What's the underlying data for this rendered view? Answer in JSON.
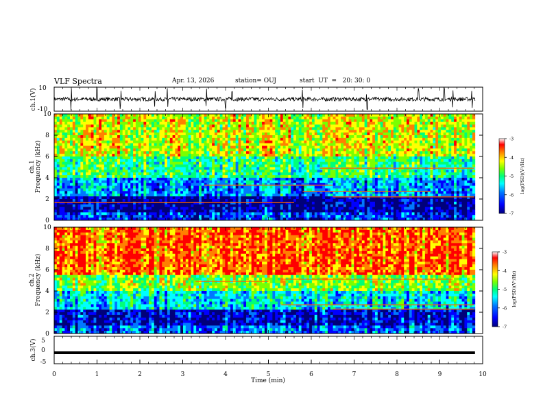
{
  "header": {
    "title": "VLF Spectra",
    "date": "Apr. 13, 2026",
    "station": "station= OUJ",
    "start": "start  UT  =   20: 30: 0"
  },
  "chart_data": [
    {
      "type": "line",
      "panel": "ch1-waveform",
      "ylabel": "ch.1(V)",
      "ylim": [
        -10,
        10
      ],
      "yticks": [
        "10",
        "-10"
      ],
      "xlim": [
        0,
        10
      ],
      "baseline": 0,
      "amplitude_typical": 2,
      "spikes_min": [
        0.4,
        1.0,
        1.55,
        2.35,
        2.65,
        3.55,
        4.0,
        4.15,
        5.8,
        7.3,
        8.5,
        9.1,
        9.3,
        9.75
      ]
    },
    {
      "type": "heatmap",
      "panel": "ch1-spectrogram",
      "ylabel": "ch.1 Frequency (kHz)",
      "ylabel_line1": "ch.1",
      "ylabel_line2": "Frequency  (kHz)",
      "ylim": [
        0,
        10
      ],
      "yticks": [
        "0",
        "2",
        "4",
        "6",
        "8",
        "10"
      ],
      "xlim": [
        0,
        9.82
      ],
      "colorbar": {
        "label": "log(PSD)(V²/Hz)",
        "range": [
          -7,
          -3
        ],
        "ticks": [
          "-3",
          "-4",
          "-5",
          "-6",
          "-7"
        ]
      },
      "lines": [
        {
          "t0": 6.2,
          "t1": 9.8,
          "f": 4.9
        },
        {
          "t0": 5.8,
          "t1": 8.8,
          "f": 2.7
        },
        {
          "t0": 6.5,
          "t1": 9.8,
          "f": 2.2
        },
        {
          "t0": 0.0,
          "t1": 5.6,
          "f": 1.65
        },
        {
          "t0": 3.5,
          "t1": 6.5,
          "f": 3.3
        }
      ]
    },
    {
      "type": "heatmap",
      "panel": "ch2-spectrogram",
      "ylabel": "ch.2 Frequency (kHz)",
      "ylabel_line1": "ch.2",
      "ylabel_line2": "Frequency  (kHz)",
      "ylim": [
        0,
        10
      ],
      "yticks": [
        "0",
        "2",
        "4",
        "6",
        "8",
        "10"
      ],
      "xlim": [
        0,
        9.82
      ],
      "colorbar": {
        "label": "log(PSD)(V²/Hz)",
        "range": [
          -7,
          -3
        ],
        "ticks": [
          "-3",
          "-4",
          "-5",
          "-6",
          "-7"
        ]
      },
      "lines": [
        {
          "t0": 5.3,
          "t1": 9.3,
          "f": 5.1
        },
        {
          "t0": 5.3,
          "t1": 9.8,
          "f": 2.7
        },
        {
          "t0": 6.5,
          "t1": 9.8,
          "f": 2.3
        },
        {
          "t0": 3.3,
          "t1": 5.0,
          "f": 4.9
        }
      ]
    },
    {
      "type": "line",
      "panel": "ch3-waveform",
      "ylabel": "ch.3(V)",
      "ylim": [
        -5,
        5
      ],
      "yticks": [
        "5",
        "0",
        "-5"
      ],
      "xlim": [
        0,
        10
      ],
      "value": -1,
      "xlabel": "Time  (min)",
      "xticks": [
        "0",
        "1",
        "2",
        "3",
        "4",
        "5",
        "6",
        "7",
        "8",
        "9",
        "10"
      ]
    }
  ],
  "colors": {
    "scale": [
      "#00007a",
      "#0000ff",
      "#0078ff",
      "#00ffff",
      "#00ff78",
      "#7aff00",
      "#ffff00",
      "#ff8000",
      "#ff0000"
    ]
  }
}
